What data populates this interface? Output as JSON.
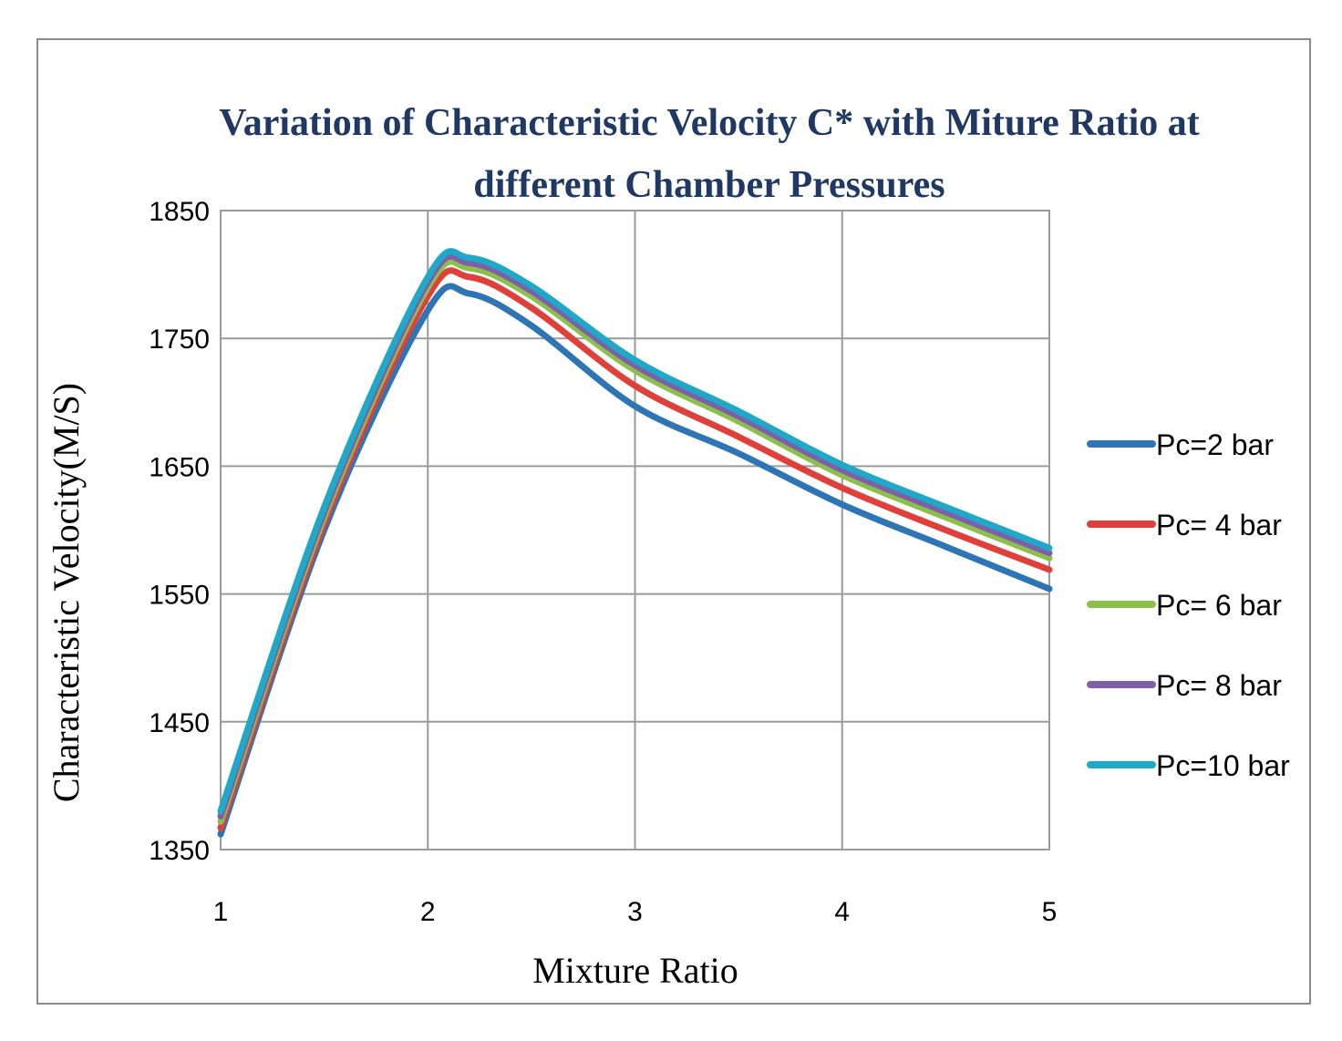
{
  "chart_data": {
    "type": "line",
    "title_line1": "Variation of Characteristic Velocity C* with Miture Ratio at",
    "title_line2": "different Chamber Pressures",
    "xlabel": "Mixture Ratio",
    "ylabel": "Characteristic  Velocity(M/S)",
    "xlim": [
      1,
      5
    ],
    "ylim": [
      1350,
      1850
    ],
    "x_ticks": [
      1,
      2,
      3,
      4,
      5
    ],
    "y_ticks": [
      1350,
      1450,
      1550,
      1650,
      1750,
      1850
    ],
    "grid": true,
    "legend_position": "right",
    "x": [
      1,
      1.5,
      2,
      2.2,
      2.5,
      3,
      3.5,
      4,
      4.5,
      5
    ],
    "series": [
      {
        "name": "Pc=2 bar",
        "color": "#2e75b6",
        "values": [
          1362,
          1600,
          1772,
          1785,
          1760,
          1697,
          1660,
          1620,
          1587,
          1554
        ]
      },
      {
        "name": "Pc= 4 bar",
        "color": "#e0403a",
        "values": [
          1367,
          1605,
          1783,
          1798,
          1774,
          1713,
          1673,
          1633,
          1600,
          1569
        ]
      },
      {
        "name": "Pc= 6 bar",
        "color": "#8cc04a",
        "values": [
          1372,
          1610,
          1790,
          1805,
          1783,
          1725,
          1685,
          1643,
          1610,
          1578
        ]
      },
      {
        "name": "Pc= 8 bar",
        "color": "#7e5fa8",
        "values": [
          1376,
          1614,
          1794,
          1809,
          1787,
          1729,
          1689,
          1647,
          1614,
          1582
        ]
      },
      {
        "name": "Pc=10 bar",
        "color": "#1fa8c8",
        "values": [
          1380,
          1618,
          1798,
          1813,
          1791,
          1733,
          1693,
          1651,
          1618,
          1586
        ]
      }
    ]
  }
}
